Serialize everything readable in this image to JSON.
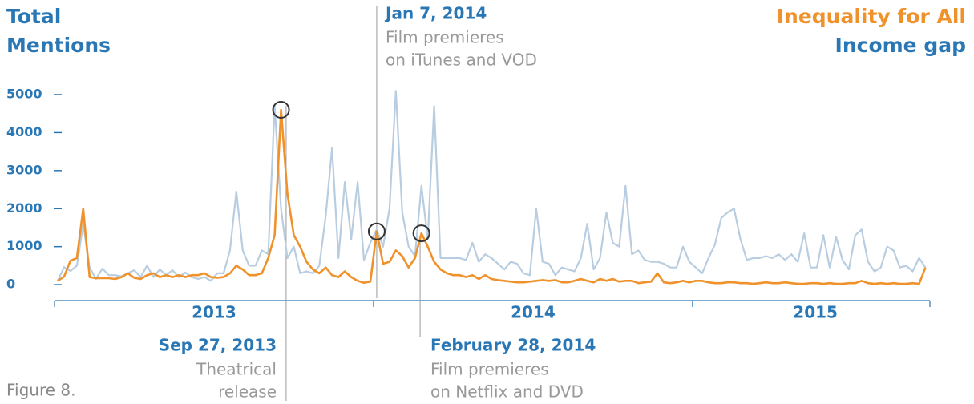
{
  "chart_data": {
    "type": "line",
    "title": [
      "Total",
      "Mentions"
    ],
    "caption": "Figure 8.",
    "xlim": [
      2013,
      2015.744
    ],
    "xticks": [
      2013,
      2014,
      2015,
      2015.744
    ],
    "year_labels": [
      {
        "value": 2013.5,
        "label": "2013"
      },
      {
        "value": 2014.5,
        "label": "2014"
      },
      {
        "value": 2015.385,
        "label": "2015"
      }
    ],
    "ylim": [
      -420,
      5000
    ],
    "yticks": [
      0,
      1000,
      2000,
      3000,
      4000,
      5000
    ],
    "x": [
      2013.01,
      2013.03,
      2013.05,
      2013.07,
      2013.09,
      2013.11,
      2013.13,
      2013.15,
      2013.17,
      2013.19,
      2013.21,
      2013.23,
      2013.25,
      2013.27,
      2013.29,
      2013.31,
      2013.33,
      2013.35,
      2013.37,
      2013.39,
      2013.41,
      2013.43,
      2013.45,
      2013.47,
      2013.49,
      2013.51,
      2013.53,
      2013.55,
      2013.57,
      2013.59,
      2013.61,
      2013.63,
      2013.65,
      2013.67,
      2013.69,
      2013.71,
      2013.73,
      2013.75,
      2013.77,
      2013.79,
      2013.81,
      2013.83,
      2013.85,
      2013.87,
      2013.89,
      2013.91,
      2013.93,
      2013.95,
      2013.97,
      2013.99,
      2014.01,
      2014.03,
      2014.05,
      2014.07,
      2014.09,
      2014.11,
      2014.13,
      2014.15,
      2014.17,
      2014.19,
      2014.21,
      2014.23,
      2014.25,
      2014.27,
      2014.29,
      2014.31,
      2014.33,
      2014.35,
      2014.37,
      2014.39,
      2014.41,
      2014.43,
      2014.45,
      2014.47,
      2014.49,
      2014.51,
      2014.53,
      2014.55,
      2014.57,
      2014.59,
      2014.61,
      2014.63,
      2014.65,
      2014.67,
      2014.69,
      2014.71,
      2014.73,
      2014.75,
      2014.77,
      2014.79,
      2014.81,
      2014.83,
      2014.85,
      2014.87,
      2014.89,
      2014.91,
      2014.93,
      2014.95,
      2014.97,
      2014.99,
      2015.01,
      2015.03,
      2015.05,
      2015.07,
      2015.09,
      2015.11,
      2015.13,
      2015.15,
      2015.17,
      2015.19,
      2015.21,
      2015.23,
      2015.25,
      2015.27,
      2015.29,
      2015.31,
      2015.33,
      2015.35,
      2015.37,
      2015.39,
      2015.41,
      2015.43,
      2015.45,
      2015.47,
      2015.49,
      2015.51,
      2015.53,
      2015.55,
      2015.57,
      2015.59,
      2015.61,
      2015.63,
      2015.65,
      2015.67,
      2015.69,
      2015.71,
      2015.73
    ],
    "series": [
      {
        "name": "Income gap",
        "color": "#b9cde1",
        "values": [
          100,
          460,
          360,
          500,
          1600,
          450,
          150,
          420,
          250,
          250,
          220,
          300,
          380,
          200,
          500,
          200,
          400,
          250,
          380,
          200,
          320,
          200,
          150,
          200,
          100,
          300,
          300,
          900,
          2450,
          900,
          500,
          500,
          900,
          800,
          4700,
          2000,
          700,
          1000,
          300,
          350,
          300,
          500,
          1800,
          3600,
          700,
          2700,
          1200,
          2700,
          650,
          1100,
          1450,
          1000,
          2000,
          5100,
          1900,
          1000,
          750,
          2600,
          1200,
          4700,
          700,
          700,
          700,
          700,
          650,
          1100,
          600,
          800,
          700,
          550,
          400,
          600,
          550,
          300,
          250,
          2000,
          600,
          550,
          250,
          450,
          400,
          350,
          700,
          1600,
          400,
          700,
          1900,
          1100,
          1000,
          2600,
          800,
          900,
          650,
          600,
          600,
          550,
          450,
          450,
          1000,
          600,
          450,
          300,
          700,
          1050,
          1750,
          1900,
          2000,
          1200,
          650,
          700,
          700,
          750,
          700,
          800,
          650,
          800,
          600,
          1350,
          450,
          450,
          1300,
          450,
          1250,
          650,
          400,
          1300,
          1450,
          600,
          350,
          450,
          1000,
          900,
          450,
          500,
          350,
          700,
          450
        ]
      },
      {
        "name": "Inequality for All",
        "color": "#f0922b",
        "values": [
          100,
          210,
          630,
          700,
          2000,
          200,
          170,
          170,
          170,
          150,
          200,
          300,
          180,
          150,
          250,
          300,
          200,
          250,
          200,
          250,
          200,
          250,
          250,
          300,
          200,
          180,
          200,
          300,
          500,
          400,
          250,
          250,
          300,
          700,
          1300,
          4600,
          2400,
          1300,
          1000,
          600,
          400,
          300,
          450,
          250,
          200,
          350,
          200,
          100,
          50,
          80,
          1400,
          550,
          600,
          900,
          750,
          450,
          700,
          1350,
          1000,
          600,
          400,
          300,
          250,
          250,
          200,
          250,
          150,
          250,
          150,
          120,
          100,
          80,
          60,
          60,
          80,
          100,
          120,
          100,
          120,
          60,
          60,
          100,
          150,
          100,
          60,
          150,
          100,
          150,
          80,
          100,
          100,
          40,
          60,
          80,
          300,
          60,
          40,
          60,
          100,
          60,
          100,
          100,
          60,
          40,
          40,
          60,
          60,
          40,
          40,
          20,
          40,
          60,
          40,
          40,
          60,
          40,
          20,
          20,
          40,
          40,
          20,
          40,
          20,
          20,
          40,
          40,
          100,
          40,
          20,
          40,
          20,
          40,
          20,
          20,
          40,
          20,
          450
        ]
      }
    ],
    "highlights": [
      {
        "series": 1,
        "index": 35
      },
      {
        "series": 1,
        "index": 50
      },
      {
        "series": 1,
        "index": 57
      }
    ],
    "annotations": [
      {
        "x": 2013.726,
        "date": "Sep 27, 2013",
        "text": [
          "Theatrical",
          "release"
        ]
      },
      {
        "x": 2014.01,
        "date": "Jan 7, 2014",
        "text": [
          "Film premieres",
          "on iTunes and VOD"
        ]
      },
      {
        "x": 2014.146,
        "date": "February 28, 2014",
        "text": [
          "Film premieres",
          "on Netflix and DVD"
        ]
      }
    ]
  }
}
